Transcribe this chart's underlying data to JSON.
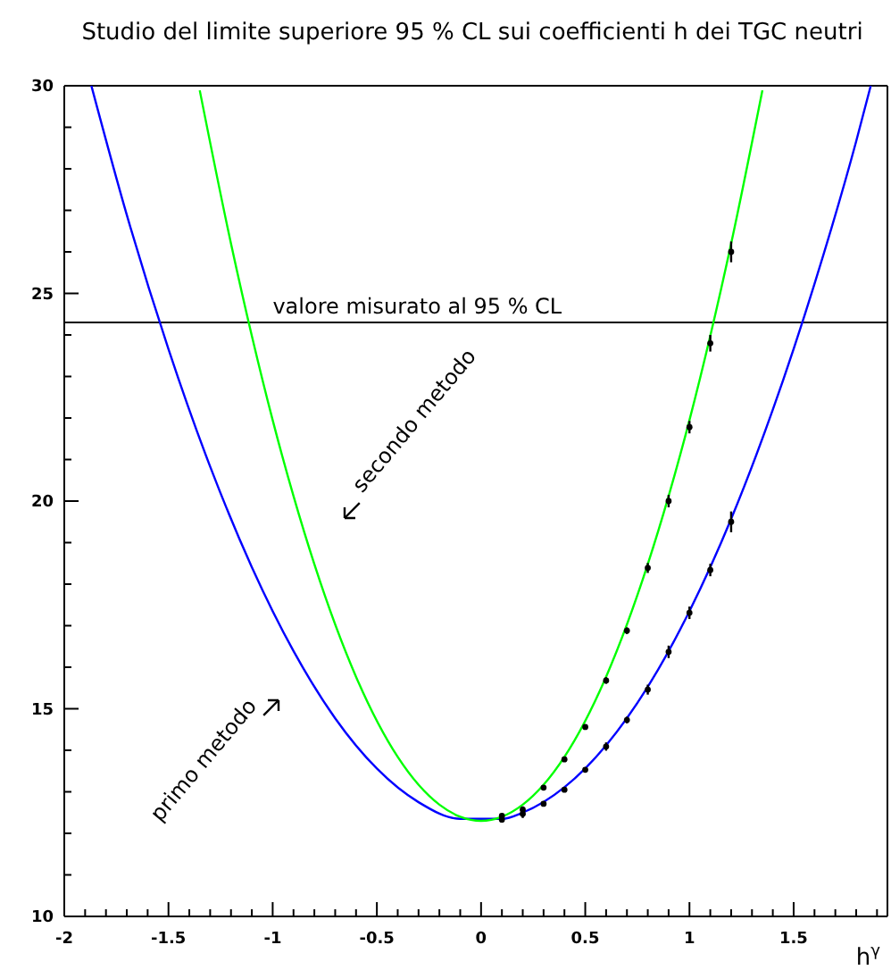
{
  "chart_data": {
    "type": "line",
    "title": "Studio del limite superiore 95 % CL sui coefficienti h dei TGC neutri",
    "xlabel": "h$^{γ}$",
    "xlim": [
      -2,
      1.95
    ],
    "ylim": [
      10,
      30
    ],
    "xticks": [
      -2,
      {
        "value": -1.9,
        "label": null
      },
      {
        "value": -1.8,
        "label": null
      },
      {
        "value": -1.7,
        "label": null
      },
      {
        "value": -1.6,
        "label": null
      },
      -1.5,
      {
        "value": -1.4,
        "label": null
      },
      {
        "value": -1.3,
        "label": null
      },
      {
        "value": -1.2,
        "label": null
      },
      {
        "value": -1.1,
        "label": null
      },
      -1,
      {
        "value": -0.9,
        "label": null
      },
      {
        "value": -0.8,
        "label": null
      },
      {
        "value": -0.7,
        "label": null
      },
      {
        "value": -0.6,
        "label": null
      },
      -0.5,
      {
        "value": -0.4,
        "label": null
      },
      {
        "value": -0.3,
        "label": null
      },
      {
        "value": -0.2,
        "label": null
      },
      {
        "value": -0.1,
        "label": null
      },
      0,
      {
        "value": 0.1,
        "label": null
      },
      {
        "value": 0.2,
        "label": null
      },
      {
        "value": 0.3,
        "label": null
      },
      {
        "value": 0.4,
        "label": null
      },
      0.5,
      {
        "value": 0.6,
        "label": null
      },
      {
        "value": 0.7,
        "label": null
      },
      {
        "value": 0.8,
        "label": null
      },
      {
        "value": 0.9,
        "label": null
      },
      1,
      {
        "value": 1.1,
        "label": null
      },
      {
        "value": 1.2,
        "label": null
      },
      {
        "value": 1.3,
        "label": null
      },
      {
        "value": 1.4,
        "label": null
      },
      1.5,
      {
        "value": 1.6,
        "label": null
      },
      {
        "value": 1.7,
        "label": null
      },
      {
        "value": 1.8,
        "label": null
      },
      {
        "value": 1.9,
        "label": null
      }
    ],
    "yticks": [
      10,
      {
        "value": 11,
        "label": null
      },
      {
        "value": 12,
        "label": null
      },
      {
        "value": 13,
        "label": null
      },
      {
        "value": 14,
        "label": null
      },
      15,
      {
        "value": 16,
        "label": null
      },
      {
        "value": 17,
        "label": null
      },
      {
        "value": 18,
        "label": null
      },
      {
        "value": 19,
        "label": null
      },
      20,
      {
        "value": 21,
        "label": null
      },
      {
        "value": 22,
        "label": null
      },
      {
        "value": 23,
        "label": null
      },
      {
        "value": 24,
        "label": null
      },
      25,
      {
        "value": 26,
        "label": null
      },
      {
        "value": 27,
        "label": null
      },
      {
        "value": 28,
        "label": null
      },
      {
        "value": 29,
        "label": null
      },
      30
    ],
    "series": [
      {
        "color": "#0000ff",
        "x": [
          -1.87,
          -1.7,
          -1.5,
          -1.3,
          -1.1,
          -0.9,
          -0.7,
          -0.5,
          -0.3,
          -0.1,
          0.1,
          0.2,
          0.4,
          0.6,
          0.8,
          1.0,
          1.2,
          1.4,
          1.6,
          1.8,
          1.87
        ],
        "values": [
          30.0,
          26.89,
          23.66,
          20.83,
          18.41,
          16.39,
          14.77,
          13.56,
          12.75,
          12.35,
          12.35,
          12.5,
          13.11,
          14.12,
          15.53,
          17.35,
          19.57,
          22.2,
          25.23,
          28.66,
          30.0
        ]
      },
      {
        "color": "#00ff00",
        "x": [
          -1.35,
          -1.2,
          -1.1,
          -1.0,
          -0.9,
          -0.8,
          -0.6,
          -0.4,
          -0.2,
          -0.1,
          0,
          0.1,
          0.2,
          0.4,
          0.6,
          0.8,
          0.9,
          1.0,
          1.1,
          1.2,
          1.35
        ],
        "values": [
          29.89,
          26.2,
          23.98,
          21.95,
          20.12,
          18.48,
          15.77,
          13.84,
          12.69,
          12.4,
          12.3,
          12.4,
          12.69,
          13.84,
          15.77,
          18.48,
          20.12,
          21.95,
          23.98,
          26.2,
          29.89
        ]
      },
      {
        "type": "scatter",
        "color": "#000000",
        "marker": "circle",
        "x": [
          0.1,
          0.2,
          0.3,
          0.4,
          0.5,
          0.6,
          0.7,
          0.8,
          0.9,
          1.0,
          1.1,
          1.2
        ],
        "values": [
          12.42,
          12.57,
          13.1,
          13.78,
          14.56,
          15.68,
          16.88,
          18.39,
          20.0,
          21.78,
          23.8,
          26.0
        ],
        "errors": [
          0.05,
          0.08,
          0.05,
          0.05,
          0.05,
          0.08,
          0.08,
          0.12,
          0.15,
          0.15,
          0.2,
          0.25
        ]
      },
      {
        "type": "scatter",
        "color": "#000000",
        "marker": "circle",
        "x": [
          0.1,
          0.2,
          0.3,
          0.4,
          0.5,
          0.6,
          0.7,
          0.8,
          0.9,
          1.0,
          1.1,
          1.2
        ],
        "values": [
          12.33,
          12.47,
          12.71,
          13.05,
          13.53,
          14.09,
          14.73,
          15.46,
          16.37,
          17.31,
          18.34,
          19.5
        ],
        "errors": [
          0.05,
          0.1,
          0.05,
          0.05,
          0.05,
          0.1,
          0.08,
          0.12,
          0.15,
          0.15,
          0.15,
          0.25
        ]
      }
    ],
    "ref_lines": [
      {
        "axis": "y",
        "value": 24.3,
        "label": "valore misurato al 95 % CL",
        "color": "#000000"
      }
    ],
    "annotations": [
      "secondo metodo",
      "primo metodo"
    ]
  }
}
